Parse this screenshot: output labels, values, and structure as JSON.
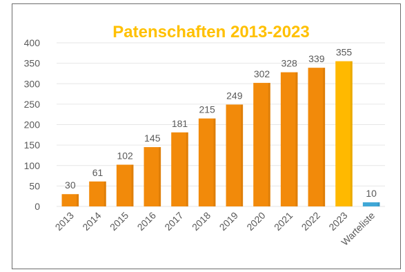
{
  "chart_data": {
    "type": "bar",
    "title": "Patenschaften 2013-2023",
    "categories": [
      "2013",
      "2014",
      "2015",
      "2016",
      "2017",
      "2018",
      "2019",
      "2020",
      "2021",
      "2022",
      "2023",
      "Warteliste"
    ],
    "values": [
      30,
      61,
      102,
      145,
      181,
      215,
      249,
      302,
      328,
      339,
      355,
      10
    ],
    "ylim": [
      0,
      400
    ],
    "yticks": [
      0,
      50,
      100,
      150,
      200,
      250,
      300,
      350,
      400
    ],
    "grid": true,
    "legend": "none",
    "colors": {
      "title": "#FFC000",
      "bar_default": "#F28A0A",
      "bar_2023": "#FFB900",
      "bar_warteliste": "#3FA7D6",
      "axis_text": "#595959",
      "grid": "#E6E6E6"
    }
  }
}
